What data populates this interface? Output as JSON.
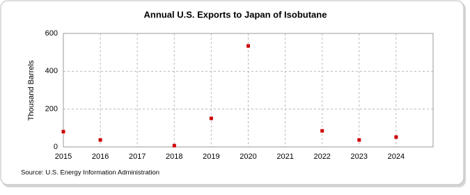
{
  "chart_data": {
    "type": "scatter",
    "title": "Annual U.S. Exports to Japan of Isobutane",
    "y_label": "Thousand Barrels",
    "source": "Source: U.S. Energy Information Administration",
    "x": [
      2015,
      2016,
      2018,
      2019,
      2020,
      2022,
      2023,
      2024
    ],
    "values": [
      81,
      37,
      7,
      151,
      534,
      85,
      37,
      52
    ],
    "color": "#cc0000",
    "xlim": [
      2015,
      2025
    ],
    "xticks": [
      2015,
      2016,
      2017,
      2018,
      2019,
      2020,
      2021,
      2022,
      2023,
      2024
    ],
    "ylim": [
      0,
      600
    ],
    "yticks": [
      0,
      200,
      400,
      600
    ],
    "grid": true
  }
}
